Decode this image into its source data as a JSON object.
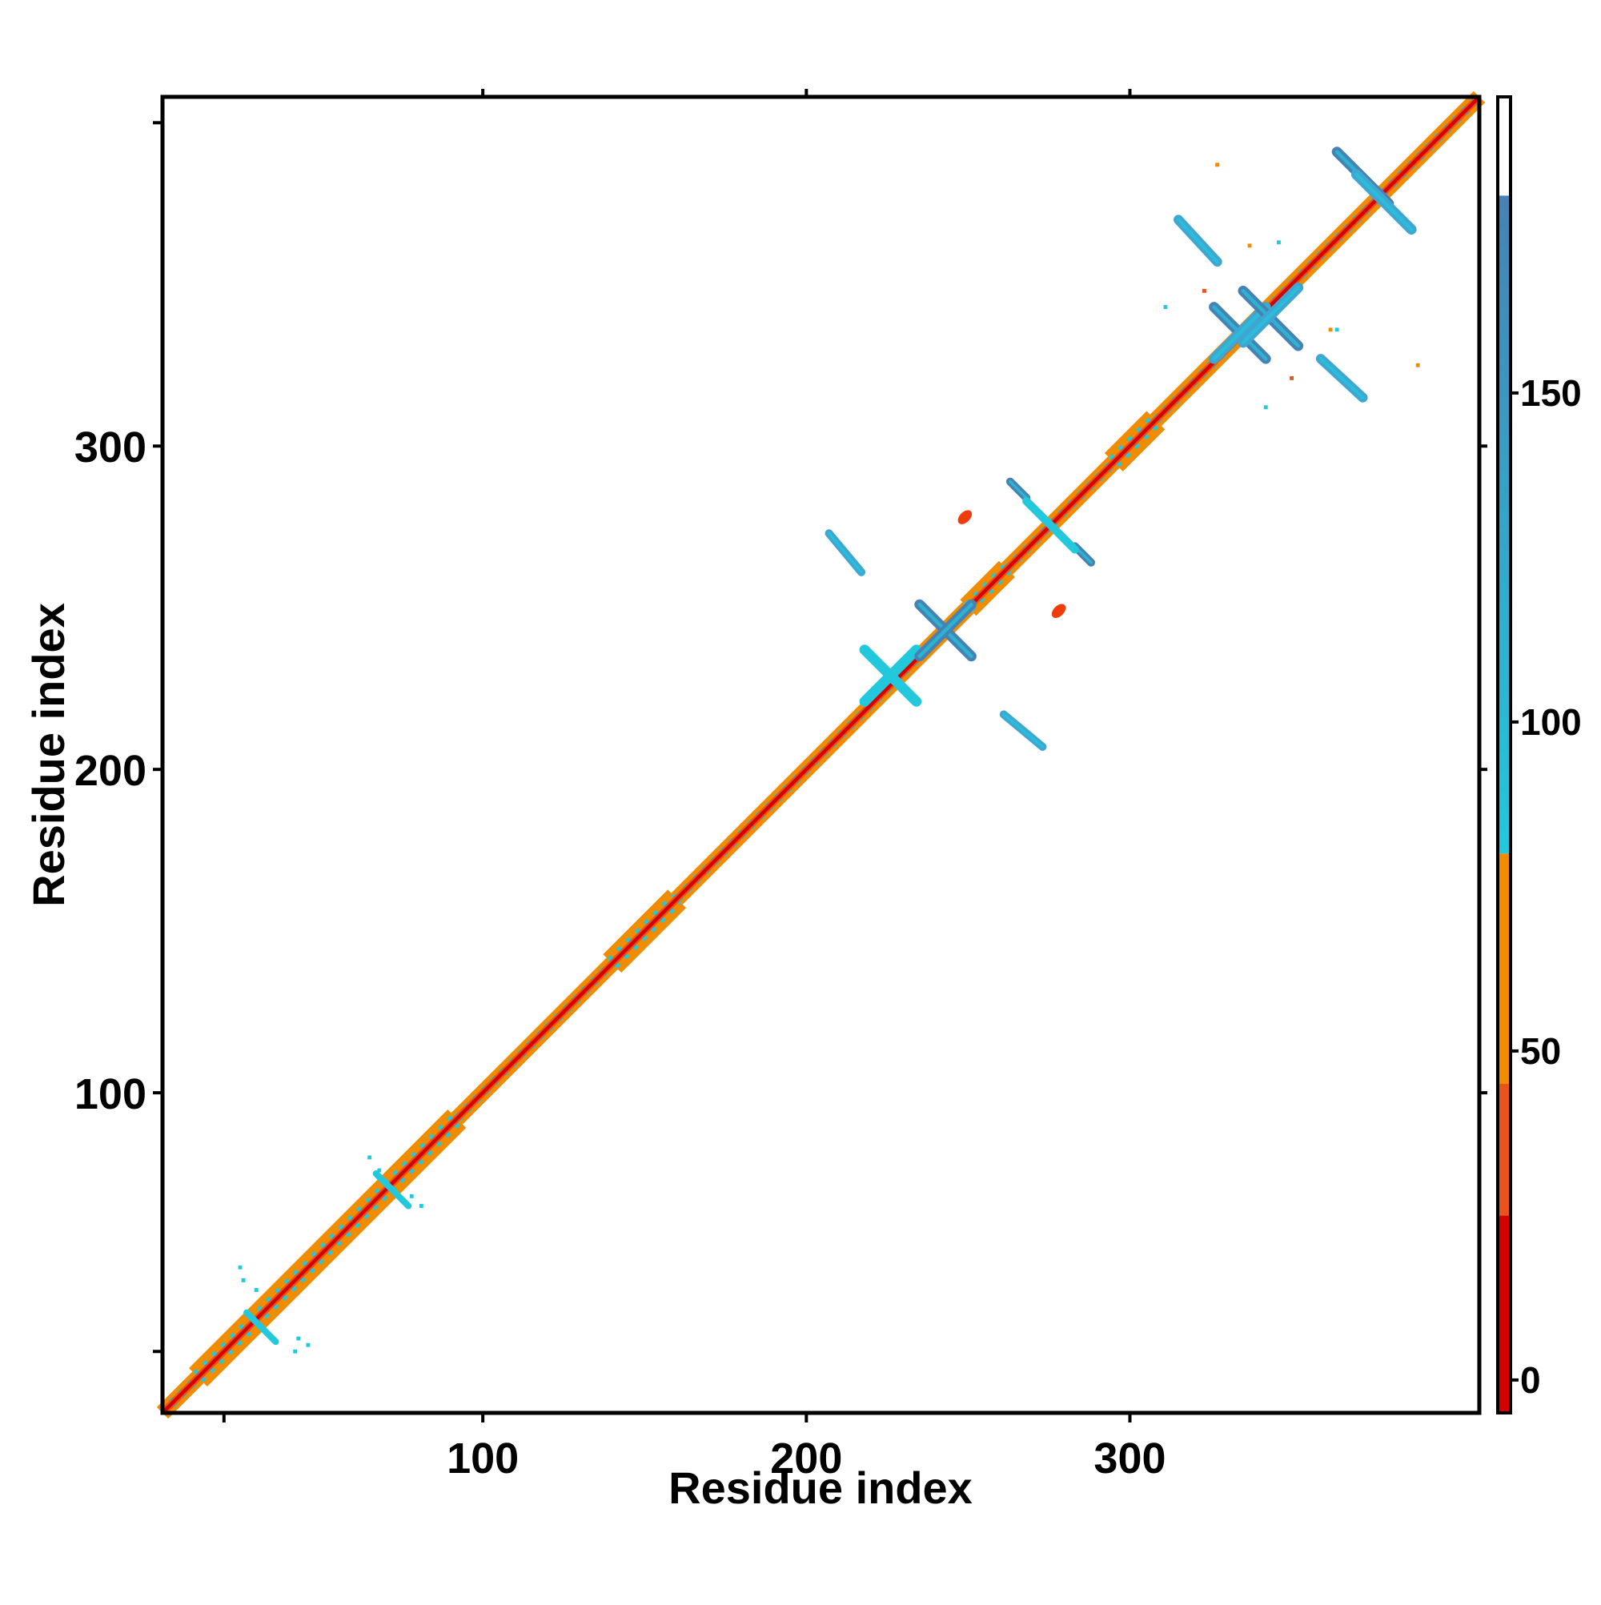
{
  "chart_data": {
    "type": "heatmap",
    "subtype": "residue contact / distance map",
    "title": "",
    "xlabel": "Residue index",
    "ylabel": "Residue index",
    "xlim": [
      1,
      408
    ],
    "ylim": [
      1,
      408
    ],
    "x_ticks": [
      100,
      200,
      300
    ],
    "y_ticks": [
      100,
      200,
      300
    ],
    "grid": false,
    "legend": "colorbar at right",
    "colorbar": {
      "ticks": [
        0,
        50,
        100,
        150
      ],
      "range": [
        -5,
        195
      ],
      "bands": [
        {
          "from": -5,
          "to": 25,
          "color": "#d40000"
        },
        {
          "from": 25,
          "to": 45,
          "color": "#e8541a"
        },
        {
          "from": 45,
          "to": 80,
          "color": "#f08c00"
        },
        {
          "from": 80,
          "to": 180,
          "color": "#22c8dc"
        },
        {
          "from": 180,
          "to": 195,
          "color": "#ffffff"
        }
      ],
      "gradient_end_color": "#4682b4"
    },
    "colors": {
      "diagonal_core": "#d40000",
      "diagonal_edge": "#e8541a",
      "diagonal_band": "#f08c00",
      "contact_light": "#22c8dc",
      "contact_mid": "#3fa6d2",
      "contact_dark": "#4682b4",
      "isolated_red": "#f03c0a"
    },
    "diagonal_segments": [
      {
        "from": 1,
        "to": 12,
        "width": 5
      },
      {
        "from": 12,
        "to": 92,
        "width": 8
      },
      {
        "from": 92,
        "to": 140,
        "width": 5
      },
      {
        "from": 140,
        "to": 160,
        "width": 8
      },
      {
        "from": 160,
        "to": 250,
        "width": 5
      },
      {
        "from": 250,
        "to": 262,
        "width": 7
      },
      {
        "from": 262,
        "to": 295,
        "width": 5
      },
      {
        "from": 295,
        "to": 308,
        "width": 8
      },
      {
        "from": 308,
        "to": 408,
        "width": 5
      }
    ],
    "contact_strands": [
      {
        "x1": 218,
        "y1": 237,
        "x2": 234,
        "y2": 221,
        "value": 110,
        "width": 3.2
      },
      {
        "x1": 234,
        "y1": 237,
        "x2": 218,
        "y2": 221,
        "value": 110,
        "width": 3.2
      },
      {
        "x1": 235,
        "y1": 251,
        "x2": 251,
        "y2": 235,
        "value": 150,
        "width": 3.2
      },
      {
        "x1": 251,
        "y1": 251,
        "x2": 235,
        "y2": 235,
        "value": 150,
        "width": 3.2
      },
      {
        "x1": 207,
        "y1": 273,
        "x2": 217,
        "y2": 261,
        "value": 135,
        "width": 2.5
      },
      {
        "x1": 261,
        "y1": 217,
        "x2": 273,
        "y2": 207,
        "value": 135,
        "width": 2.5
      },
      {
        "x1": 263,
        "y1": 289,
        "x2": 268,
        "y2": 284,
        "value": 150,
        "width": 2.5
      },
      {
        "x1": 283,
        "y1": 269,
        "x2": 288,
        "y2": 264,
        "value": 150,
        "width": 2.5
      },
      {
        "x1": 268,
        "y1": 283,
        "x2": 283,
        "y2": 268,
        "value": 110,
        "width": 2.5
      },
      {
        "x1": 315,
        "y1": 370,
        "x2": 327,
        "y2": 357,
        "value": 130,
        "width": 3.0
      },
      {
        "x1": 326,
        "y1": 343,
        "x2": 342,
        "y2": 327,
        "value": 150,
        "width": 3.2
      },
      {
        "x1": 326,
        "y1": 327,
        "x2": 342,
        "y2": 343,
        "value": 125,
        "width": 3.2
      },
      {
        "x1": 335,
        "y1": 348,
        "x2": 352,
        "y2": 331,
        "value": 150,
        "width": 3.2
      },
      {
        "x1": 335,
        "y1": 332,
        "x2": 352,
        "y2": 349,
        "value": 125,
        "width": 3.2
      },
      {
        "x1": 359,
        "y1": 327,
        "x2": 372,
        "y2": 315,
        "value": 130,
        "width": 3.0
      },
      {
        "x1": 364,
        "y1": 391,
        "x2": 380,
        "y2": 375,
        "value": 150,
        "width": 3.2
      },
      {
        "x1": 370,
        "y1": 384,
        "x2": 387,
        "y2": 367,
        "value": 125,
        "width": 3.2
      },
      {
        "x1": 27,
        "y1": 32,
        "x2": 36,
        "y2": 23,
        "value": 105,
        "width": 2.0
      },
      {
        "x1": 67,
        "y1": 75,
        "x2": 77,
        "y2": 65,
        "value": 105,
        "width": 2.0
      }
    ],
    "red_patches": [
      {
        "x": 249,
        "y": 278,
        "value": 30
      },
      {
        "x": 278,
        "y": 249,
        "value": 30
      }
    ],
    "scatter_points": [
      {
        "x": 26,
        "y": 42,
        "value": 105
      },
      {
        "x": 30,
        "y": 39,
        "value": 105
      },
      {
        "x": 25,
        "y": 46,
        "value": 110
      },
      {
        "x": 43,
        "y": 24,
        "value": 105
      },
      {
        "x": 46,
        "y": 22,
        "value": 105
      },
      {
        "x": 42,
        "y": 20,
        "value": 110
      },
      {
        "x": 65,
        "y": 80,
        "value": 105
      },
      {
        "x": 68,
        "y": 76,
        "value": 105
      },
      {
        "x": 78,
        "y": 68,
        "value": 105
      },
      {
        "x": 81,
        "y": 65,
        "value": 105
      },
      {
        "x": 311,
        "y": 343,
        "value": 110
      },
      {
        "x": 342,
        "y": 312,
        "value": 110
      },
      {
        "x": 327,
        "y": 387,
        "value": 60
      },
      {
        "x": 389,
        "y": 325,
        "value": 60
      },
      {
        "x": 346,
        "y": 363,
        "value": 110
      },
      {
        "x": 364,
        "y": 336,
        "value": 110
      },
      {
        "x": 323,
        "y": 348,
        "value": 30
      },
      {
        "x": 350,
        "y": 321,
        "value": 30
      },
      {
        "x": 362,
        "y": 336,
        "value": 65
      },
      {
        "x": 337,
        "y": 362,
        "value": 65
      }
    ]
  }
}
